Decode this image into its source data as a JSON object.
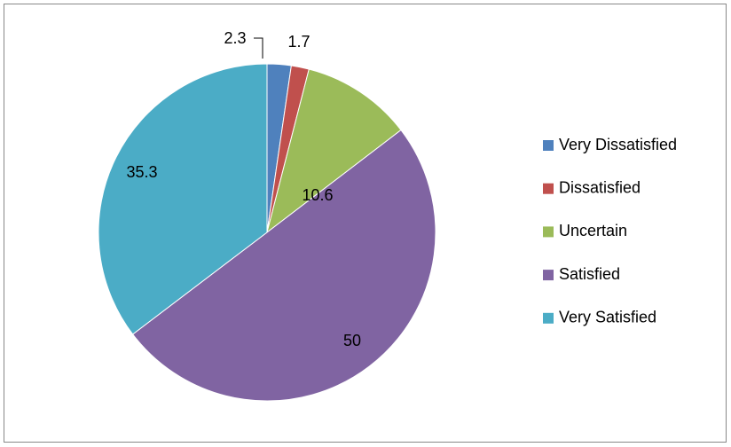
{
  "chart_data": {
    "type": "pie",
    "categories": [
      "Very Dissatisfied",
      "Dissatisfied",
      "Uncertain",
      "Satisfied",
      "Very Satisfied"
    ],
    "values": [
      2.3,
      1.7,
      10.6,
      50,
      35.3
    ],
    "colors": [
      "#4f81bd",
      "#c0504d",
      "#9bbb59",
      "#8064a2",
      "#4bacc6"
    ],
    "legend": "right"
  }
}
